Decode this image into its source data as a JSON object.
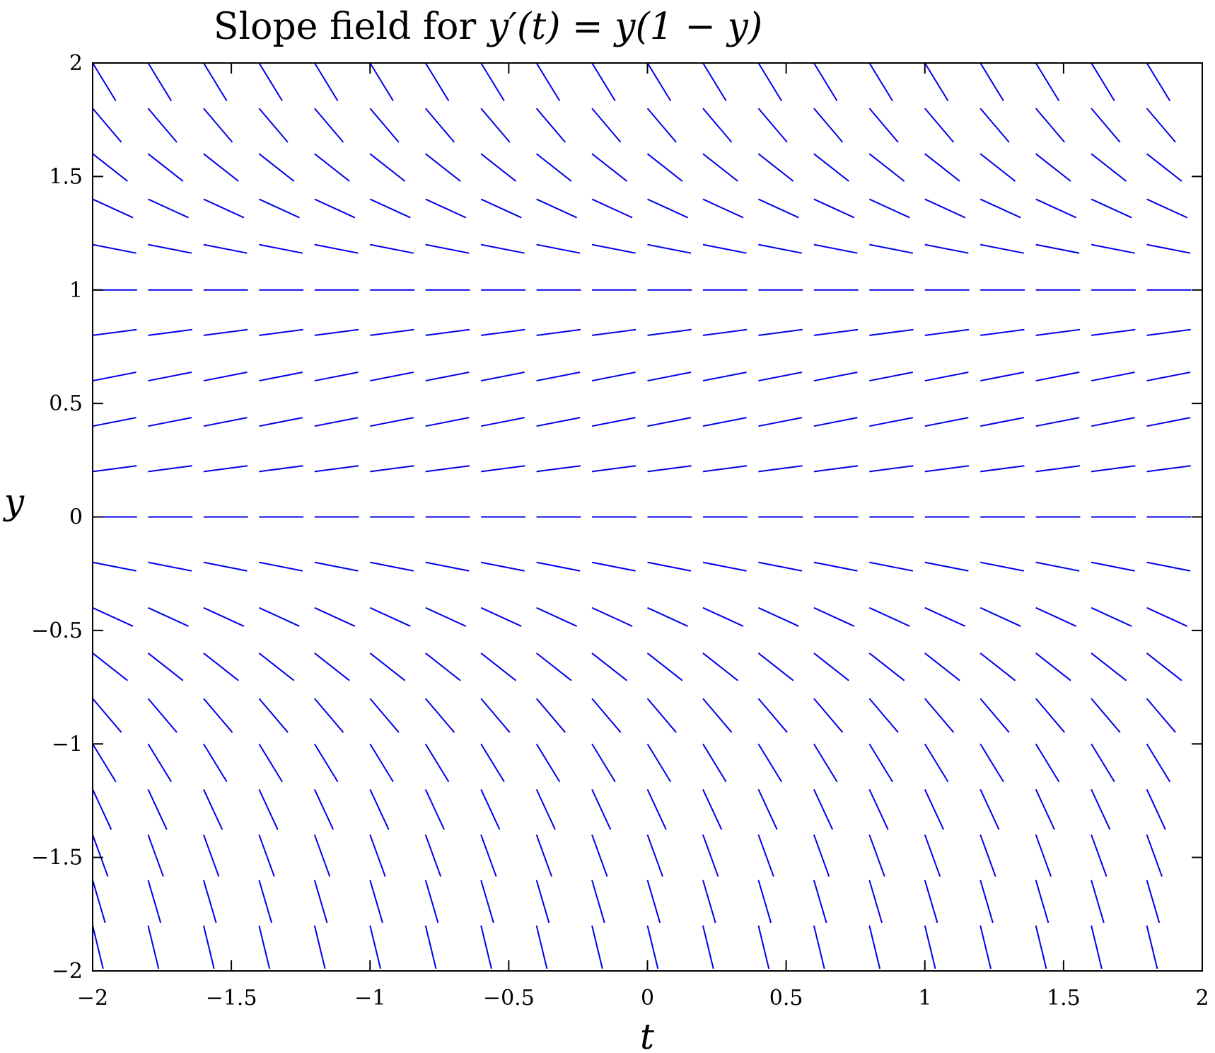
{
  "chart_data": {
    "type": "slope-field",
    "title": {
      "prefix": "Slope field for ",
      "equation": "y′(t) = y(1 − y)"
    },
    "xlabel": "t",
    "ylabel": "y",
    "xlim": [
      -2,
      2
    ],
    "ylim": [
      -2,
      2
    ],
    "xticks": [
      -2,
      -1.5,
      -1,
      -0.5,
      0,
      0.5,
      1,
      1.5,
      2
    ],
    "xtick_labels": [
      "−2",
      "−1.5",
      "−1",
      "−0.5",
      "0",
      "0.5",
      "1",
      "1.5",
      "2"
    ],
    "yticks": [
      -2,
      -1.5,
      -1,
      -0.5,
      0,
      0.5,
      1,
      1.5,
      2
    ],
    "ytick_labels": [
      "−2",
      "−1.5",
      "−1",
      "−0.5",
      "0",
      "0.5",
      "1",
      "1.5",
      "2"
    ],
    "grid": false,
    "field": {
      "t_start": -2,
      "t_end": 1.8,
      "t_step": 0.2,
      "y_start": -1.8,
      "y_end": 2.0,
      "y_step": 0.2,
      "segment_length": 0.16
    },
    "line_color": "#0000ee",
    "axis_color": "#000000"
  }
}
